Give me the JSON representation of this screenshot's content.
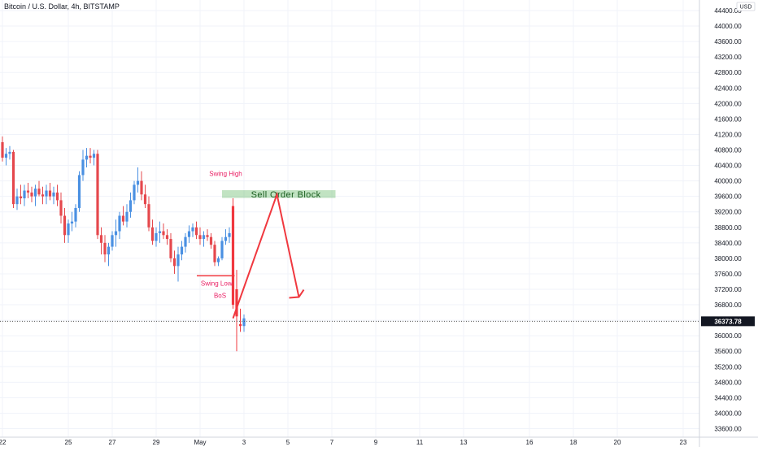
{
  "header": {
    "title": "Bitcoin / U.S. Dollar, 4h, BITSTAMP"
  },
  "axis": {
    "currency": "USD"
  },
  "chart_data": {
    "type": "candlestick",
    "instrument": "Bitcoin / U.S. Dollar",
    "interval": "4h",
    "exchange": "BITSTAMP",
    "ylim": [
      33400,
      44600
    ],
    "y_ticks": [
      44400,
      44000,
      43600,
      43200,
      42800,
      42400,
      42000,
      41600,
      41200,
      40800,
      40400,
      40000,
      39600,
      39200,
      38800,
      38400,
      38000,
      37600,
      37200,
      36800,
      36400,
      36000,
      35600,
      35200,
      34800,
      34400,
      34000,
      33600
    ],
    "x_ticks": [
      {
        "label": "22",
        "t": 0
      },
      {
        "label": "25",
        "t": 18
      },
      {
        "label": "27",
        "t": 30
      },
      {
        "label": "29",
        "t": 42
      },
      {
        "label": "May",
        "t": 54
      },
      {
        "label": "3",
        "t": 66
      },
      {
        "label": "5",
        "t": 78
      },
      {
        "label": "7",
        "t": 90
      },
      {
        "label": "9",
        "t": 102
      },
      {
        "label": "11",
        "t": 114
      },
      {
        "label": "13",
        "t": 126
      },
      {
        "label": "16",
        "t": 144
      },
      {
        "label": "18",
        "t": 156
      },
      {
        "label": "20",
        "t": 168
      },
      {
        "label": "23",
        "t": 186
      }
    ],
    "candles": [
      {
        "t": 0,
        "o": 41000,
        "h": 41150,
        "l": 40500,
        "c": 40600
      },
      {
        "t": 1,
        "o": 40600,
        "h": 40850,
        "l": 40400,
        "c": 40700
      },
      {
        "t": 2,
        "o": 40700,
        "h": 40900,
        "l": 40550,
        "c": 40750
      },
      {
        "t": 3,
        "o": 40750,
        "h": 40800,
        "l": 39300,
        "c": 39400
      },
      {
        "t": 4,
        "o": 39400,
        "h": 39800,
        "l": 39250,
        "c": 39600
      },
      {
        "t": 5,
        "o": 39600,
        "h": 39900,
        "l": 39400,
        "c": 39550
      },
      {
        "t": 6,
        "o": 39550,
        "h": 39900,
        "l": 39350,
        "c": 39750
      },
      {
        "t": 7,
        "o": 39750,
        "h": 39950,
        "l": 39550,
        "c": 39700
      },
      {
        "t": 8,
        "o": 39700,
        "h": 39850,
        "l": 39450,
        "c": 39600
      },
      {
        "t": 9,
        "o": 39600,
        "h": 39900,
        "l": 39350,
        "c": 39800
      },
      {
        "t": 10,
        "o": 39800,
        "h": 40000,
        "l": 39600,
        "c": 39650
      },
      {
        "t": 11,
        "o": 39650,
        "h": 39850,
        "l": 39400,
        "c": 39600
      },
      {
        "t": 12,
        "o": 39600,
        "h": 39900,
        "l": 39400,
        "c": 39750
      },
      {
        "t": 13,
        "o": 39750,
        "h": 39950,
        "l": 39500,
        "c": 39600
      },
      {
        "t": 14,
        "o": 39600,
        "h": 39850,
        "l": 39400,
        "c": 39700
      },
      {
        "t": 15,
        "o": 39700,
        "h": 39900,
        "l": 39350,
        "c": 39500
      },
      {
        "t": 16,
        "o": 39500,
        "h": 39700,
        "l": 38900,
        "c": 39100
      },
      {
        "t": 17,
        "o": 39100,
        "h": 39300,
        "l": 38400,
        "c": 38600
      },
      {
        "t": 18,
        "o": 38600,
        "h": 39000,
        "l": 38400,
        "c": 38900
      },
      {
        "t": 19,
        "o": 38900,
        "h": 39200,
        "l": 38700,
        "c": 38950
      },
      {
        "t": 20,
        "o": 38950,
        "h": 39400,
        "l": 38800,
        "c": 39300
      },
      {
        "t": 21,
        "o": 39300,
        "h": 40250,
        "l": 39200,
        "c": 40150
      },
      {
        "t": 22,
        "o": 40150,
        "h": 40800,
        "l": 40000,
        "c": 40550
      },
      {
        "t": 23,
        "o": 40550,
        "h": 40850,
        "l": 40350,
        "c": 40650
      },
      {
        "t": 24,
        "o": 40650,
        "h": 40850,
        "l": 40450,
        "c": 40600
      },
      {
        "t": 25,
        "o": 40600,
        "h": 40800,
        "l": 40400,
        "c": 40700
      },
      {
        "t": 26,
        "o": 40700,
        "h": 40800,
        "l": 38500,
        "c": 38600
      },
      {
        "t": 27,
        "o": 38600,
        "h": 38800,
        "l": 38100,
        "c": 38400
      },
      {
        "t": 28,
        "o": 38400,
        "h": 38600,
        "l": 37900,
        "c": 38100
      },
      {
        "t": 29,
        "o": 38100,
        "h": 38400,
        "l": 37800,
        "c": 38300
      },
      {
        "t": 30,
        "o": 38300,
        "h": 38700,
        "l": 38200,
        "c": 38600
      },
      {
        "t": 31,
        "o": 38600,
        "h": 39000,
        "l": 38300,
        "c": 38700
      },
      {
        "t": 32,
        "o": 38700,
        "h": 39200,
        "l": 38500,
        "c": 39100
      },
      {
        "t": 33,
        "o": 39100,
        "h": 39350,
        "l": 38850,
        "c": 38950
      },
      {
        "t": 34,
        "o": 38950,
        "h": 39400,
        "l": 38800,
        "c": 39200
      },
      {
        "t": 35,
        "o": 39200,
        "h": 39700,
        "l": 39050,
        "c": 39500
      },
      {
        "t": 36,
        "o": 39500,
        "h": 40000,
        "l": 39400,
        "c": 39900
      },
      {
        "t": 37,
        "o": 39900,
        "h": 40350,
        "l": 39700,
        "c": 40000
      },
      {
        "t": 38,
        "o": 40000,
        "h": 40250,
        "l": 39500,
        "c": 39650
      },
      {
        "t": 39,
        "o": 39650,
        "h": 39900,
        "l": 39300,
        "c": 39400
      },
      {
        "t": 40,
        "o": 39400,
        "h": 39600,
        "l": 38700,
        "c": 38800
      },
      {
        "t": 41,
        "o": 38800,
        "h": 39000,
        "l": 38350,
        "c": 38450
      },
      {
        "t": 42,
        "o": 38450,
        "h": 38800,
        "l": 38300,
        "c": 38650
      },
      {
        "t": 43,
        "o": 38650,
        "h": 38950,
        "l": 38400,
        "c": 38700
      },
      {
        "t": 44,
        "o": 38700,
        "h": 38900,
        "l": 38500,
        "c": 38600
      },
      {
        "t": 45,
        "o": 38600,
        "h": 38750,
        "l": 38350,
        "c": 38500
      },
      {
        "t": 46,
        "o": 38500,
        "h": 38650,
        "l": 37900,
        "c": 38000
      },
      {
        "t": 47,
        "o": 38000,
        "h": 38200,
        "l": 37600,
        "c": 37800
      },
      {
        "t": 48,
        "o": 37800,
        "h": 38300,
        "l": 37400,
        "c": 38100
      },
      {
        "t": 49,
        "o": 38100,
        "h": 38450,
        "l": 37950,
        "c": 38300
      },
      {
        "t": 50,
        "o": 38300,
        "h": 38650,
        "l": 38150,
        "c": 38550
      },
      {
        "t": 51,
        "o": 38550,
        "h": 38850,
        "l": 38400,
        "c": 38700
      },
      {
        "t": 52,
        "o": 38700,
        "h": 38900,
        "l": 38550,
        "c": 38800
      },
      {
        "t": 53,
        "o": 38800,
        "h": 38950,
        "l": 38500,
        "c": 38600
      },
      {
        "t": 54,
        "o": 38600,
        "h": 38800,
        "l": 38350,
        "c": 38500
      },
      {
        "t": 55,
        "o": 38500,
        "h": 38700,
        "l": 38300,
        "c": 38600
      },
      {
        "t": 56,
        "o": 38600,
        "h": 38750,
        "l": 38450,
        "c": 38550
      },
      {
        "t": 57,
        "o": 38550,
        "h": 38650,
        "l": 38250,
        "c": 38350
      },
      {
        "t": 58,
        "o": 38350,
        "h": 38450,
        "l": 37800,
        "c": 37900
      },
      {
        "t": 59,
        "o": 37900,
        "h": 38050,
        "l": 37800,
        "c": 38000
      },
      {
        "t": 60,
        "o": 38000,
        "h": 38550,
        "l": 37950,
        "c": 38450
      },
      {
        "t": 61,
        "o": 38450,
        "h": 38750,
        "l": 38350,
        "c": 38550
      },
      {
        "t": 62,
        "o": 38550,
        "h": 38800,
        "l": 38400,
        "c": 38650
      }
    ],
    "annotations": {
      "swing_high": {
        "label": "Swing High",
        "t": 61,
        "price": 40000
      },
      "sell_order_block": {
        "label": "Sell Order Block",
        "t_start": 60,
        "t_end": 91,
        "price_low": 39560,
        "price_high": 39760
      },
      "swing_low": {
        "label": "Swing Low",
        "t_start": 54,
        "t_end": 63,
        "price": 37550
      },
      "bos": {
        "label": "BoS",
        "t": 63
      },
      "projection_path": [
        {
          "t": 63,
          "price": 36450
        },
        {
          "t": 75,
          "price": 39650
        },
        {
          "t": 81,
          "price": 37000
        }
      ]
    },
    "current_price": {
      "label": "36373.78",
      "price": 36373.78
    }
  }
}
